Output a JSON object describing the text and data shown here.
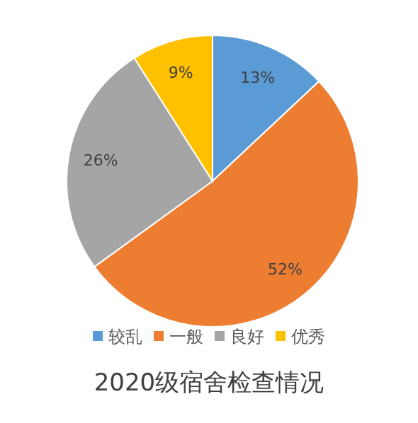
{
  "chart_data": {
    "type": "pie",
    "title": "2020级宿舍检查情况",
    "categories": [
      "较乱",
      "一般",
      "良好",
      "优秀"
    ],
    "values": [
      13,
      52,
      26,
      9
    ],
    "value_labels": [
      "13%",
      "52%",
      "26%",
      "9%"
    ],
    "colors": [
      "#5b9bd5",
      "#ed7d31",
      "#a5a5a5",
      "#ffc000"
    ],
    "legend": "bottom"
  }
}
